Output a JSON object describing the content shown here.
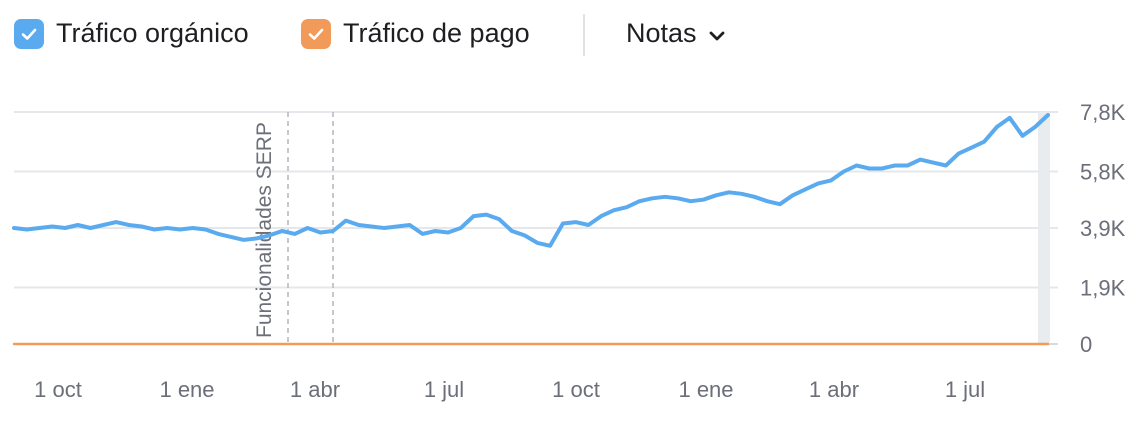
{
  "legend": {
    "organic": {
      "label": "Tráfico orgánico",
      "color": "#5aaaf0",
      "checked": true,
      "icon": "check-icon"
    },
    "paid": {
      "label": "Tráfico de pago",
      "color": "#f29a59",
      "checked": true,
      "icon": "check-icon"
    },
    "notes": {
      "label": "Notas",
      "icon": "chevron-down-icon"
    }
  },
  "chart_data": {
    "type": "line",
    "title": "",
    "xlabel": "",
    "ylabel": "",
    "x_axis_labels": [
      "1 oct",
      "1 ene",
      "1 abr",
      "1 jul",
      "1 oct",
      "1 ene",
      "1 abr",
      "1 jul"
    ],
    "y_axis_labels": [
      "7,8K",
      "5,8K",
      "3,9K",
      "1,9K",
      "0"
    ],
    "y_ticks": [
      7800,
      5800,
      3900,
      1900,
      0
    ],
    "ylim": [
      0,
      7800
    ],
    "grid": true,
    "annotation": {
      "label": "Funcionalidades SERP"
    },
    "series": [
      {
        "name": "Tráfico orgánico",
        "color": "#5aaaf0",
        "values": [
          3900,
          3850,
          3900,
          3950,
          3900,
          4000,
          3900,
          4000,
          4100,
          4000,
          3950,
          3850,
          3900,
          3850,
          3900,
          3850,
          3700,
          3600,
          3500,
          3550,
          3650,
          3800,
          3700,
          3900,
          3750,
          3800,
          4150,
          4000,
          3950,
          3900,
          3950,
          4000,
          3700,
          3800,
          3750,
          3900,
          4300,
          4350,
          4200,
          3800,
          3650,
          3400,
          3300,
          4050,
          4100,
          4000,
          4300,
          4500,
          4600,
          4800,
          4900,
          4950,
          4900,
          4800,
          4850,
          5000,
          5100,
          5050,
          4950,
          4800,
          4700,
          5000,
          5200,
          5400,
          5500,
          5800,
          6000,
          5900,
          5900,
          6000,
          6000,
          6200,
          6100,
          6000,
          6400,
          6600,
          6800,
          7300,
          7600,
          7000,
          7300,
          7700
        ]
      },
      {
        "name": "Tráfico de pago",
        "color": "#f29a59",
        "values": [
          0,
          0,
          0,
          0,
          0,
          0,
          0,
          0,
          0,
          0,
          0,
          0,
          0,
          0,
          0,
          0,
          0,
          0,
          0,
          0,
          0,
          0,
          0,
          0,
          0,
          0,
          0,
          0,
          0,
          0,
          0,
          0,
          0,
          0,
          0,
          0,
          0,
          0,
          0,
          0,
          0,
          0,
          0,
          0,
          0,
          0,
          0,
          0,
          0,
          0,
          0,
          0,
          0,
          0,
          0,
          0,
          0,
          0,
          0,
          0,
          0,
          0,
          0,
          0,
          0,
          0,
          0,
          0,
          0,
          0,
          0,
          0,
          0,
          0,
          0,
          0,
          0,
          0,
          0,
          0,
          0,
          0
        ]
      }
    ]
  }
}
